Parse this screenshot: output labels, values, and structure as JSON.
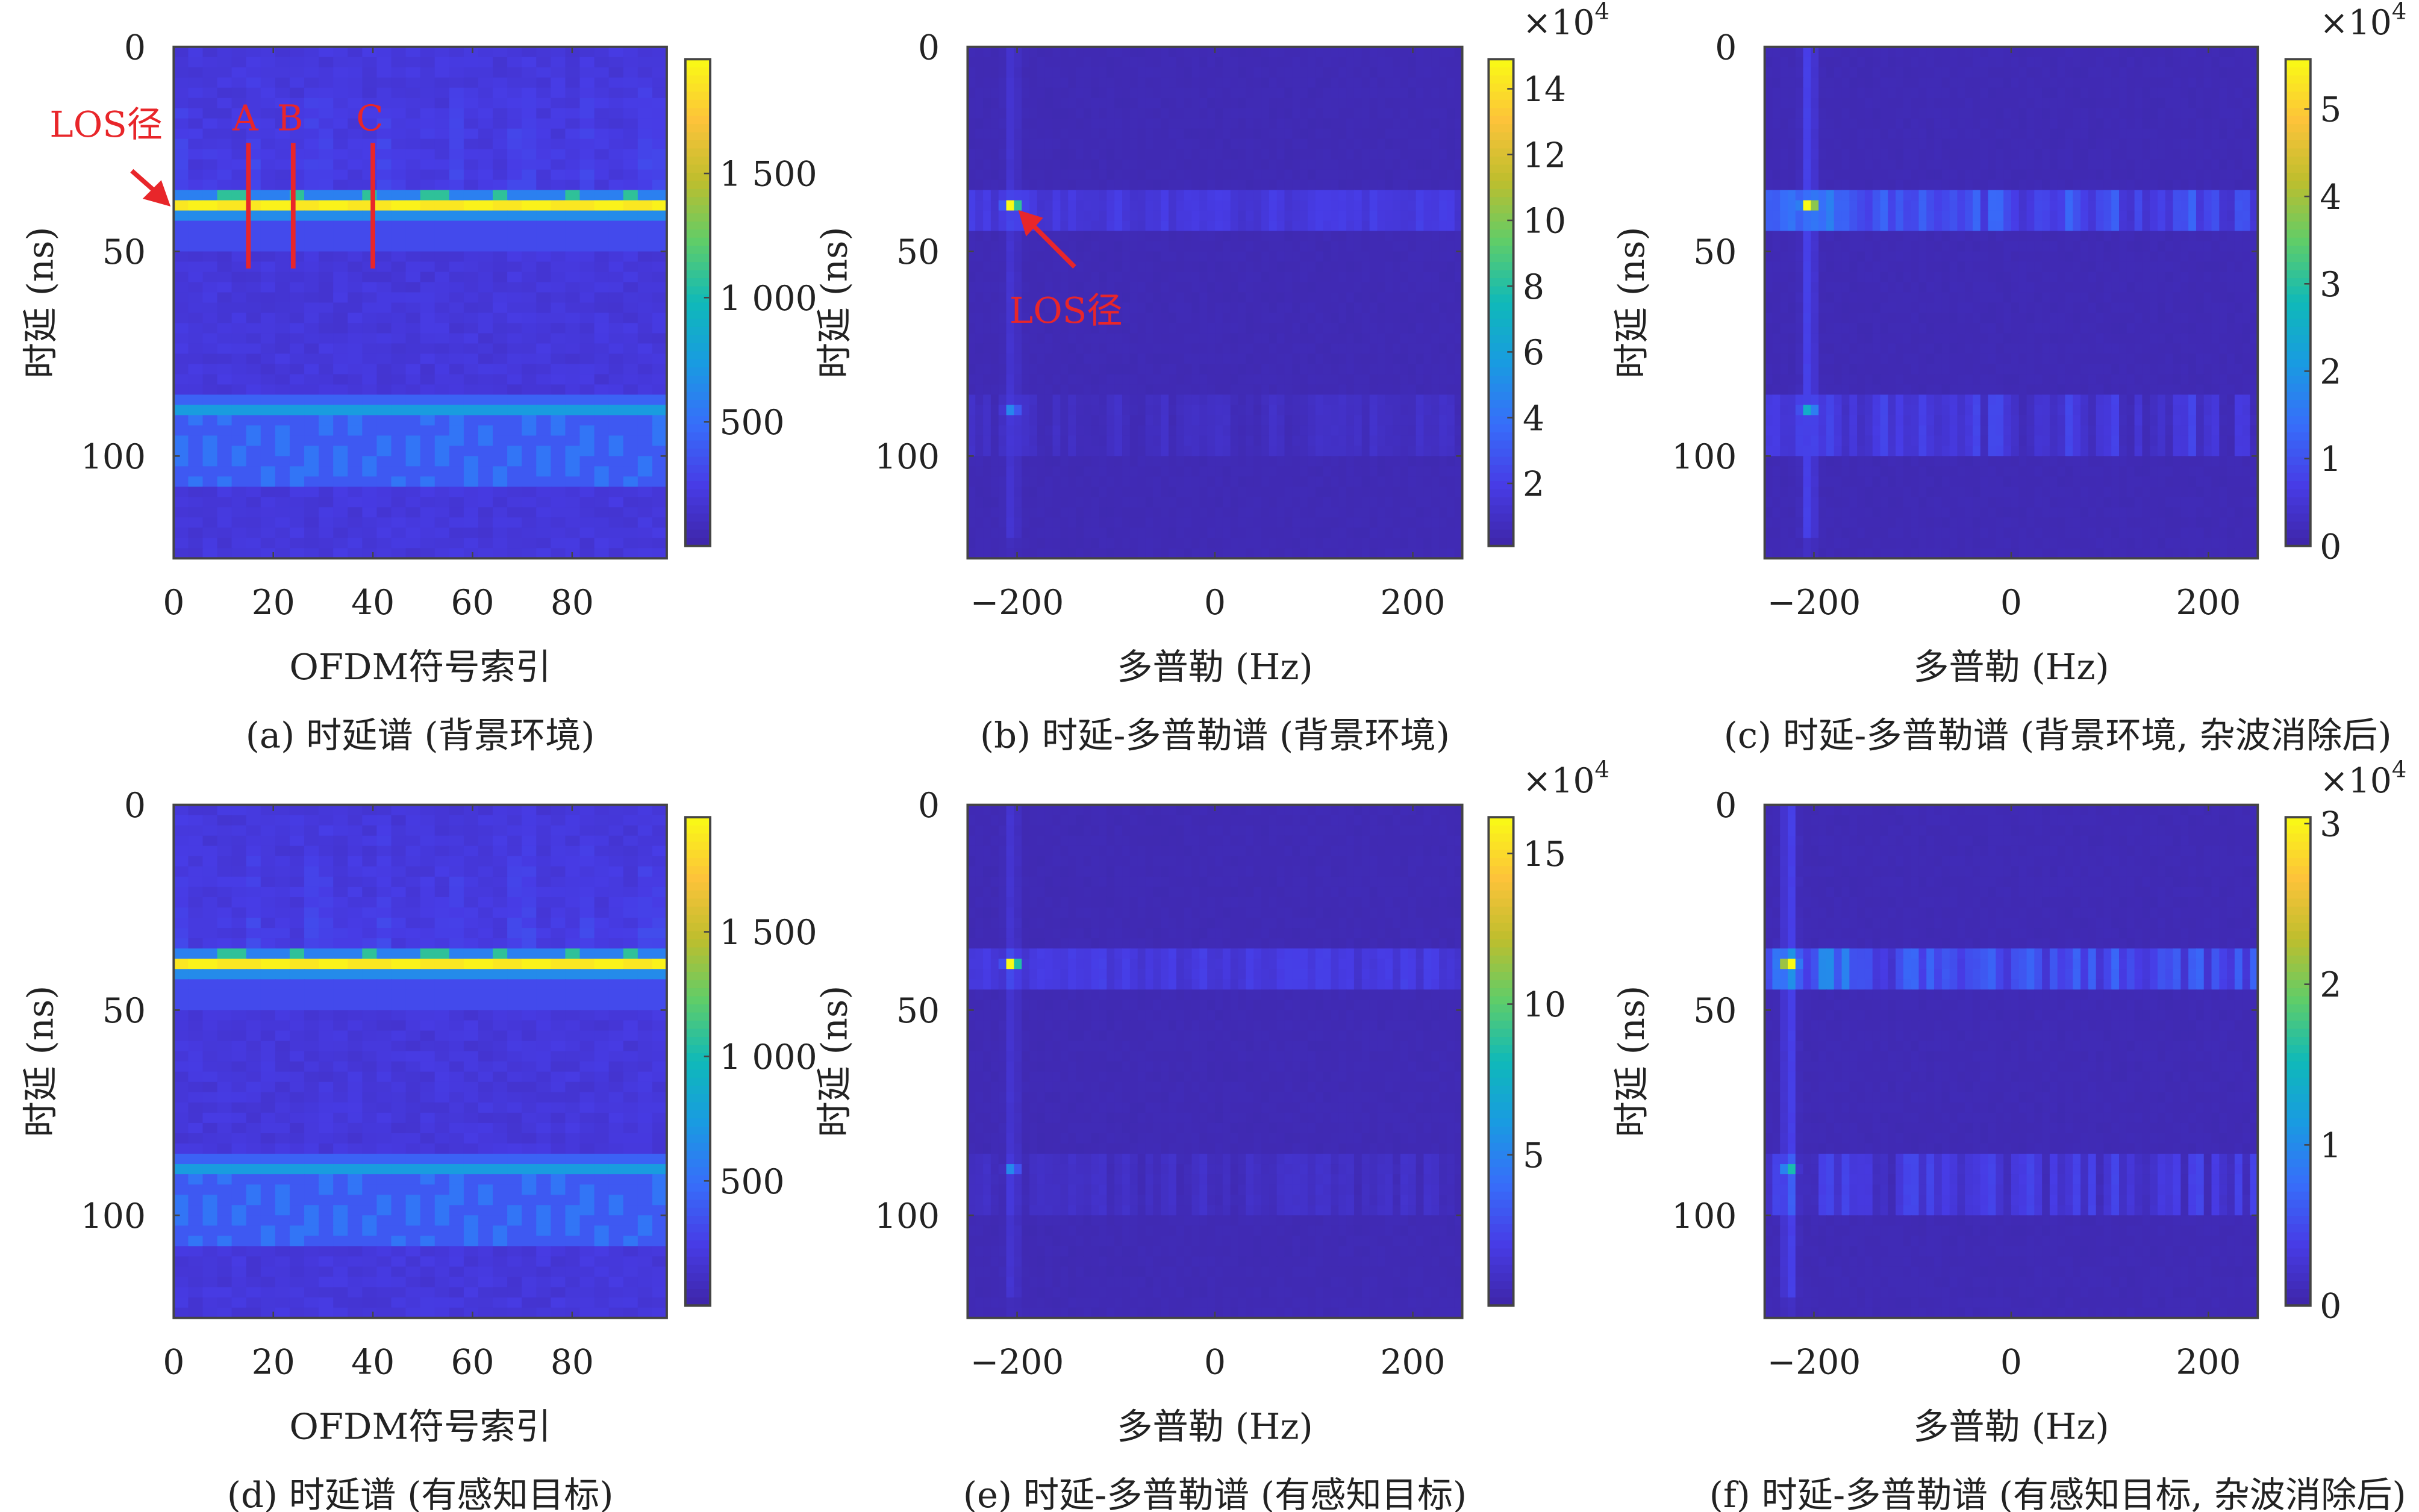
{
  "chart_data": [
    {
      "id": "a",
      "type": "heatmap",
      "caption": "(a) 时延谱 (背景环境)",
      "xlabel": "OFDM符号索引",
      "ylabel": "时延 (ns)",
      "xlim": [
        0,
        99
      ],
      "ylim": [
        0,
        125
      ],
      "xticks": [
        "0",
        "20",
        "40",
        "60",
        "80"
      ],
      "xtick_values": [
        0,
        20,
        40,
        60,
        80
      ],
      "yticks": [
        "0",
        "50",
        "100"
      ],
      "ytick_values": [
        0,
        50,
        100
      ],
      "colorbar": {
        "range": [
          0,
          1960
        ],
        "ticks": [
          "500",
          "1 000",
          "1 500"
        ],
        "tick_values": [
          500,
          1000,
          1500
        ],
        "multiplier": ""
      },
      "pattern": "delay",
      "features": {
        "los_delay_ns": 38,
        "second_path_delay_ns": 89
      },
      "annotations": {
        "los_label": "LOS径",
        "lines": [
          {
            "label": "A",
            "x": 15
          },
          {
            "label": "B",
            "x": 24
          },
          {
            "label": "C",
            "x": 40
          }
        ]
      }
    },
    {
      "id": "b",
      "type": "heatmap",
      "caption": "(b) 时延-多普勒谱 (背景环境)",
      "xlabel": "多普勒 (Hz)",
      "ylabel": "时延 (ns)",
      "xlim": [
        -250,
        250
      ],
      "ylim": [
        0,
        125
      ],
      "xticks": [
        "−200",
        "0",
        "200"
      ],
      "xtick_values": [
        -200,
        0,
        200
      ],
      "yticks": [
        "0",
        "50",
        "100"
      ],
      "ytick_values": [
        0,
        50,
        100
      ],
      "colorbar": {
        "range": [
          0.1,
          14.9
        ],
        "ticks": [
          "2",
          "4",
          "6",
          "8",
          "10",
          "12",
          "14"
        ],
        "tick_values": [
          2,
          4,
          6,
          8,
          10,
          12,
          14
        ],
        "multiplier": "×10",
        "multiplier_exp": "4"
      },
      "pattern": "dd",
      "features": {
        "peak_doppler_hz": -205,
        "peak_delay_ns": 38
      },
      "annotations": {
        "los_label": "LOS径"
      }
    },
    {
      "id": "c",
      "type": "heatmap",
      "caption": "(c) 时延-多普勒谱 (背景环境, 杂波消除后)",
      "xlabel": "多普勒 (Hz)",
      "ylabel": "时延 (ns)",
      "xlim": [
        -250,
        250
      ],
      "ylim": [
        0,
        125
      ],
      "xticks": [
        "−200",
        "0",
        "200"
      ],
      "xtick_values": [
        -200,
        0,
        200
      ],
      "yticks": [
        "0",
        "50",
        "100"
      ],
      "ytick_values": [
        0,
        50,
        100
      ],
      "colorbar": {
        "range": [
          0,
          5.57
        ],
        "ticks": [
          "0",
          "1",
          "2",
          "3",
          "4",
          "5"
        ],
        "tick_values": [
          0,
          1,
          2,
          3,
          4,
          5
        ],
        "multiplier": "×10",
        "multiplier_exp": "4"
      },
      "pattern": "ddc",
      "features": {
        "peak_doppler_hz": -205,
        "peak_delay_ns": 38
      }
    },
    {
      "id": "d",
      "type": "heatmap",
      "caption": "(d) 时延谱 (有感知目标)",
      "xlabel": "OFDM符号索引",
      "ylabel": "时延 (ns)",
      "xlim": [
        0,
        99
      ],
      "ylim": [
        0,
        125
      ],
      "xticks": [
        "0",
        "20",
        "40",
        "60",
        "80"
      ],
      "xtick_values": [
        0,
        20,
        40,
        60,
        80
      ],
      "yticks": [
        "0",
        "50",
        "100"
      ],
      "ytick_values": [
        0,
        50,
        100
      ],
      "colorbar": {
        "range": [
          0,
          1960
        ],
        "ticks": [
          "500",
          "1 000",
          "1 500"
        ],
        "tick_values": [
          500,
          1000,
          1500
        ],
        "multiplier": ""
      },
      "pattern": "delay",
      "features": {
        "los_delay_ns": 38,
        "second_path_delay_ns": 89
      }
    },
    {
      "id": "e",
      "type": "heatmap",
      "caption": "(e) 时延-多普勒谱 (有感知目标)",
      "xlabel": "多普勒 (Hz)",
      "ylabel": "时延 (ns)",
      "xlim": [
        -250,
        250
      ],
      "ylim": [
        0,
        125
      ],
      "xticks": [
        "−200",
        "0",
        "200"
      ],
      "xtick_values": [
        -200,
        0,
        200
      ],
      "yticks": [
        "0",
        "50",
        "100"
      ],
      "ytick_values": [
        0,
        50,
        100
      ],
      "colorbar": {
        "range": [
          0,
          16.2
        ],
        "ticks": [
          "5",
          "10",
          "15"
        ],
        "tick_values": [
          5,
          10,
          15
        ],
        "multiplier": "×10",
        "multiplier_exp": "4"
      },
      "pattern": "dd",
      "features": {
        "peak_doppler_hz": -205,
        "peak_delay_ns": 38
      }
    },
    {
      "id": "f",
      "type": "heatmap",
      "caption": "(f) 时延-多普勒谱 (有感知目标, 杂波消除后)",
      "xlabel": "多普勒 (Hz)",
      "ylabel": "时延 (ns)",
      "xlim": [
        -250,
        250
      ],
      "ylim": [
        0,
        125
      ],
      "xticks": [
        "−200",
        "0",
        "200"
      ],
      "xtick_values": [
        -200,
        0,
        200
      ],
      "yticks": [
        "0",
        "50",
        "100"
      ],
      "ytick_values": [
        0,
        50,
        100
      ],
      "colorbar": {
        "range": [
          0,
          3.04
        ],
        "ticks": [
          "0",
          "1",
          "2",
          "3"
        ],
        "tick_values": [
          0,
          1,
          2,
          3
        ],
        "multiplier": "×10",
        "multiplier_exp": "4"
      },
      "pattern": "ddc",
      "features": {
        "peak_doppler_hz": -225,
        "peak_delay_ns": 38
      }
    }
  ],
  "colors": {
    "annotation": "#e8262a",
    "axis": "#444444"
  }
}
